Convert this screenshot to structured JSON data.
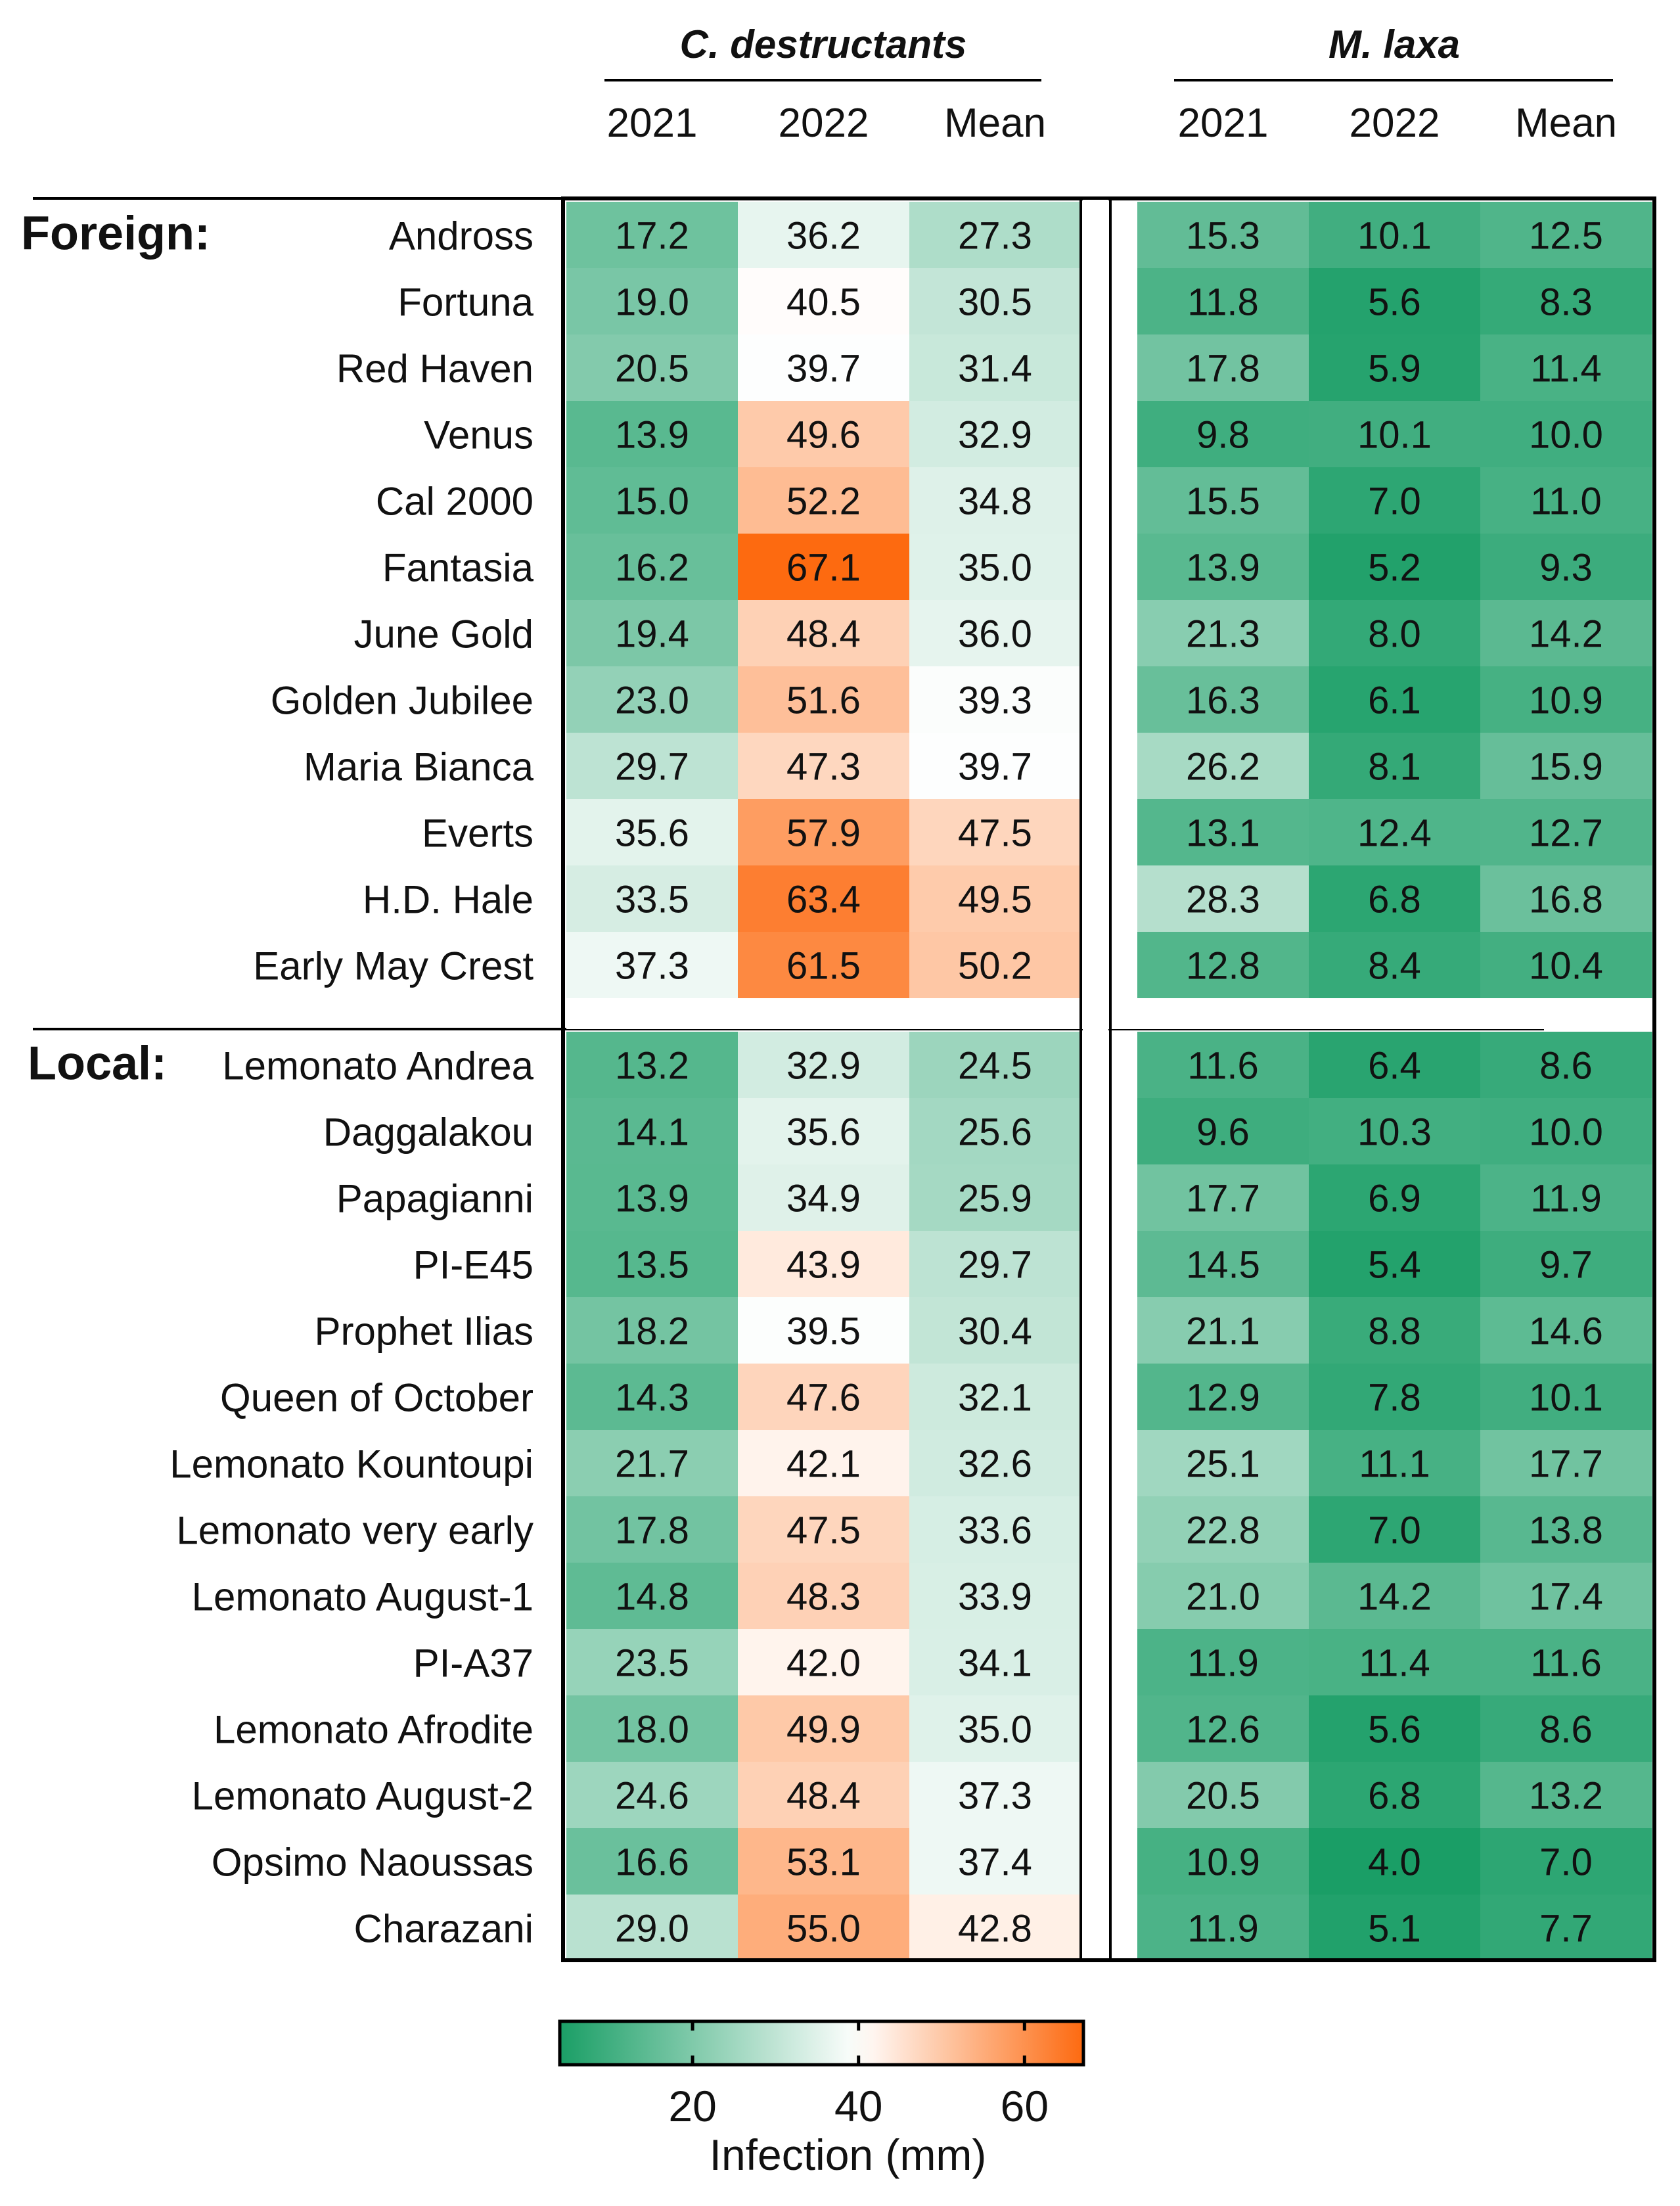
{
  "chart_data": {
    "type": "heatmap",
    "title": "",
    "groups": [
      {
        "name": "C. destructants",
        "columns": [
          "2021",
          "2022",
          "Mean"
        ]
      },
      {
        "name": "M. laxa",
        "columns": [
          "2021",
          "2022",
          "Mean"
        ]
      }
    ],
    "sections": [
      {
        "label": "Foreign:",
        "rows": [
          {
            "name": "Andross",
            "values": [
              17.2,
              36.2,
              27.3,
              15.3,
              10.1,
              12.5
            ]
          },
          {
            "name": "Fortuna",
            "values": [
              19.0,
              40.5,
              30.5,
              11.8,
              5.6,
              8.3
            ]
          },
          {
            "name": "Red Haven",
            "values": [
              20.5,
              39.7,
              31.4,
              17.8,
              5.9,
              11.4
            ]
          },
          {
            "name": "Venus",
            "values": [
              13.9,
              49.6,
              32.9,
              9.8,
              10.1,
              10.0
            ]
          },
          {
            "name": "Cal 2000",
            "values": [
              15.0,
              52.2,
              34.8,
              15.5,
              7.0,
              11.0
            ]
          },
          {
            "name": "Fantasia",
            "values": [
              16.2,
              67.1,
              35.0,
              13.9,
              5.2,
              9.3
            ]
          },
          {
            "name": "June Gold",
            "values": [
              19.4,
              48.4,
              36.0,
              21.3,
              8.0,
              14.2
            ]
          },
          {
            "name": "Golden Jubilee",
            "values": [
              23.0,
              51.6,
              39.3,
              16.3,
              6.1,
              10.9
            ]
          },
          {
            "name": "Maria Bianca",
            "values": [
              29.7,
              47.3,
              39.7,
              26.2,
              8.1,
              15.9
            ]
          },
          {
            "name": "Everts",
            "values": [
              35.6,
              57.9,
              47.5,
              13.1,
              12.4,
              12.7
            ]
          },
          {
            "name": "H.D. Hale",
            "values": [
              33.5,
              63.4,
              49.5,
              28.3,
              6.8,
              16.8
            ]
          },
          {
            "name": "Early May Crest",
            "values": [
              37.3,
              61.5,
              50.2,
              12.8,
              8.4,
              10.4
            ]
          }
        ]
      },
      {
        "label": "Local:",
        "rows": [
          {
            "name": "Lemonato Andrea",
            "values": [
              13.2,
              32.9,
              24.5,
              11.6,
              6.4,
              8.6
            ]
          },
          {
            "name": "Daggalakou",
            "values": [
              14.1,
              35.6,
              25.6,
              9.6,
              10.3,
              10.0
            ]
          },
          {
            "name": "Papagianni",
            "values": [
              13.9,
              34.9,
              25.9,
              17.7,
              6.9,
              11.9
            ]
          },
          {
            "name": "PI-E45",
            "values": [
              13.5,
              43.9,
              29.7,
              14.5,
              5.4,
              9.7
            ]
          },
          {
            "name": "Prophet Ilias",
            "values": [
              18.2,
              39.5,
              30.4,
              21.1,
              8.8,
              14.6
            ]
          },
          {
            "name": "Queen of October",
            "values": [
              14.3,
              47.6,
              32.1,
              12.9,
              7.8,
              10.1
            ]
          },
          {
            "name": "Lemonato Kountoupi",
            "values": [
              21.7,
              42.1,
              32.6,
              25.1,
              11.1,
              17.7
            ]
          },
          {
            "name": "Lemonato very early",
            "values": [
              17.8,
              47.5,
              33.6,
              22.8,
              7.0,
              13.8
            ]
          },
          {
            "name": "Lemonato August-1",
            "values": [
              14.8,
              48.3,
              33.9,
              21.0,
              14.2,
              17.4
            ]
          },
          {
            "name": "PI-A37",
            "values": [
              23.5,
              42.0,
              34.1,
              11.9,
              11.4,
              11.6
            ]
          },
          {
            "name": "Lemonato Afrodite",
            "values": [
              18.0,
              49.9,
              35.0,
              12.6,
              5.6,
              8.6
            ]
          },
          {
            "name": "Lemonato August-2",
            "values": [
              24.6,
              48.4,
              37.3,
              20.5,
              6.8,
              13.2
            ]
          },
          {
            "name": "Opsimo Naoussas",
            "values": [
              16.6,
              53.1,
              37.4,
              10.9,
              4.0,
              7.0
            ]
          },
          {
            "name": "Charazani",
            "values": [
              29.0,
              55.0,
              42.8,
              11.9,
              5.1,
              7.7
            ]
          }
        ]
      }
    ],
    "colorbar": {
      "label": "Infection (mm)",
      "ticks": [
        20,
        40,
        60
      ],
      "range": [
        4,
        67.1
      ],
      "center": 40,
      "low_color": "#1a9e66",
      "mid_color": "#ffffff",
      "high_color": "#fd6a10"
    }
  }
}
